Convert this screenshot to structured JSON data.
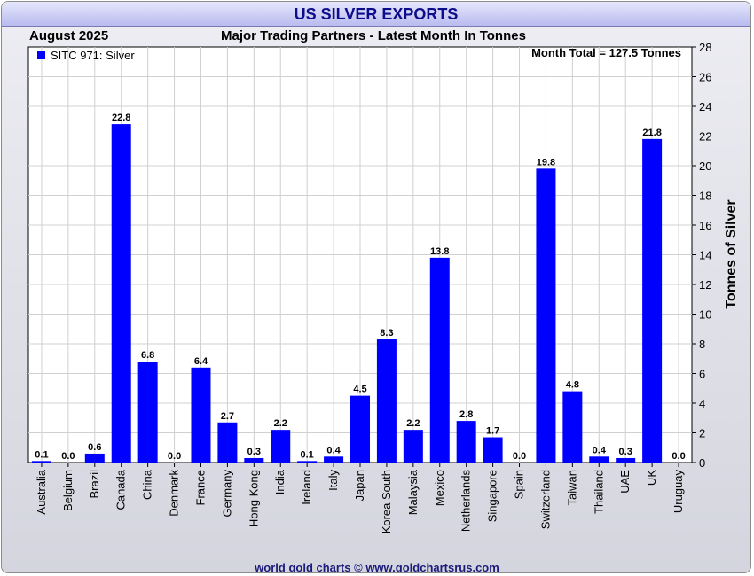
{
  "header": {
    "title": "US SILVER EXPORTS",
    "period": "August 2025",
    "subtitle": "Major Trading Partners - Latest Month In Tonnes"
  },
  "footer": {
    "credit": "world gold charts © www.goldchartsrus.com"
  },
  "colors": {
    "bar": "#0000ff",
    "grid": "#d0d0d0",
    "title": "#0d0d8c"
  },
  "chart_data": {
    "type": "bar",
    "title": "US SILVER EXPORTS",
    "subtitle": "Major Trading Partners - Latest Month In Tonnes",
    "ylabel": "Tonnes of Silver",
    "ylim": [
      0,
      28
    ],
    "yticks": [
      0,
      2,
      4,
      6,
      8,
      10,
      12,
      14,
      16,
      18,
      20,
      22,
      24,
      26,
      28
    ],
    "y_axis_side": "right",
    "grid": true,
    "legend": {
      "entries": [
        "SITC 971: Silver"
      ],
      "placement": "top-left"
    },
    "annotation": "Month Total = 127.5 Tonnes",
    "categories": [
      "Australia",
      "Belgium",
      "Brazil",
      "Canada",
      "China",
      "Denmark",
      "France",
      "Germany",
      "Hong Kong",
      "India",
      "Ireland",
      "Italy",
      "Japan",
      "Korea South",
      "Malaysia",
      "Mexico",
      "Netherlands",
      "Singapore",
      "Spain",
      "Switzerland",
      "Taiwan",
      "Thailand",
      "UAE",
      "UK",
      "Uruguay"
    ],
    "series": [
      {
        "name": "SITC 971: Silver",
        "values": [
          0.1,
          0.0,
          0.6,
          22.8,
          6.8,
          0.0,
          6.4,
          2.7,
          0.3,
          2.2,
          0.1,
          0.4,
          4.5,
          8.3,
          2.2,
          13.8,
          2.8,
          1.7,
          0.0,
          19.8,
          4.8,
          0.4,
          0.3,
          21.8,
          0.0
        ],
        "labels": [
          "0.1",
          "0.0",
          "0.6",
          "22.8",
          "6.8",
          "0.0",
          "6.4",
          "2.7",
          "0.3",
          "2.2",
          "0.1",
          "0.4",
          "4.5",
          "8.3",
          "2.2",
          "13.8",
          "2.8",
          "1.7",
          "0.0",
          "19.8",
          "4.8",
          "0.4",
          "0.3",
          "21.8",
          "0.0"
        ]
      }
    ]
  }
}
